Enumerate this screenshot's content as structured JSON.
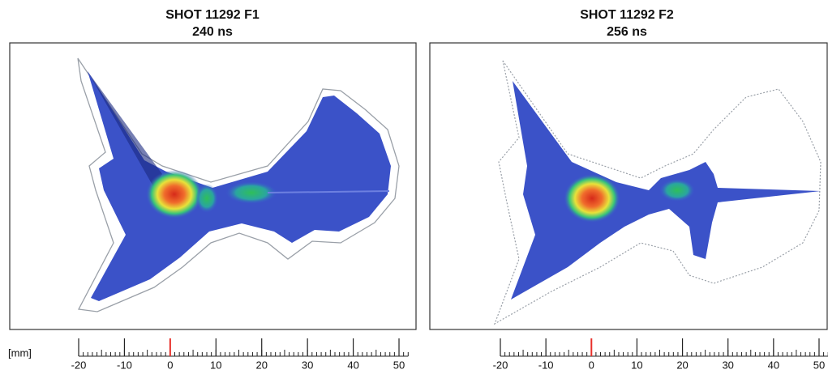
{
  "unit_label": "[mm]",
  "ruler": {
    "xlim": [
      -20,
      52
    ],
    "xticks": [
      -20,
      -10,
      0,
      10,
      20,
      30,
      40,
      50
    ],
    "minor_tick_interval": 1,
    "highlight_tick": 0,
    "highlight_color": "#e8302a"
  },
  "panels": [
    {
      "title": "SHOT 11292 F1",
      "subtitle": "240 ns"
    },
    {
      "title": "SHOT 11292 F2",
      "subtitle": "256 ns"
    }
  ]
}
